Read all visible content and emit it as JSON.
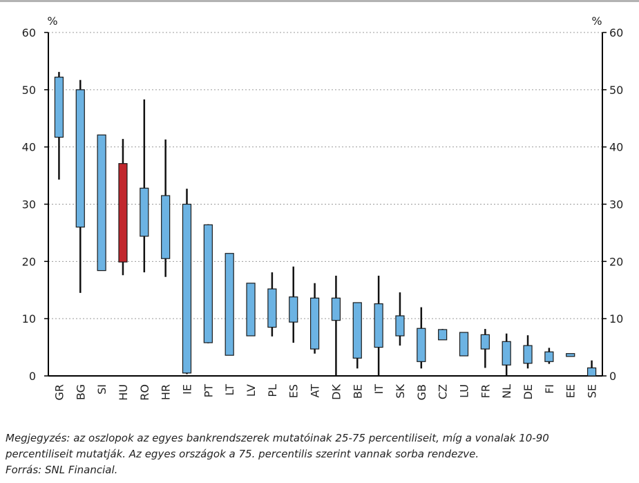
{
  "chart_data": {
    "type": "box",
    "y_label": "%",
    "y2_label": "%",
    "categories": [
      "GR",
      "BG",
      "SI",
      "HU",
      "RO",
      "HR",
      "IE",
      "PT",
      "LT",
      "LV",
      "PL",
      "ES",
      "AT",
      "DK",
      "BE",
      "IT",
      "SK",
      "GB",
      "CZ",
      "LU",
      "FR",
      "NL",
      "DE",
      "FI",
      "EE",
      "SE"
    ],
    "p90": [
      53.1,
      51.7,
      42.1,
      41.4,
      48.3,
      41.3,
      32.7,
      26.5,
      21.4,
      16.2,
      18.1,
      19.1,
      16.2,
      17.5,
      12.8,
      17.5,
      14.6,
      12.0,
      8.2,
      7.6,
      8.2,
      7.4,
      7.1,
      4.9,
      3.9,
      2.7
    ],
    "p75": [
      52.2,
      50.0,
      42.1,
      37.1,
      32.8,
      31.5,
      30.0,
      26.4,
      21.4,
      16.2,
      15.2,
      13.8,
      13.6,
      13.6,
      12.8,
      12.6,
      10.5,
      8.3,
      8.1,
      7.6,
      7.2,
      6.0,
      5.3,
      4.2,
      3.9,
      1.4
    ],
    "p25": [
      41.7,
      26.0,
      18.4,
      19.9,
      24.4,
      20.5,
      0.5,
      5.8,
      3.6,
      7.0,
      8.5,
      9.4,
      4.7,
      9.7,
      3.1,
      5.0,
      7.0,
      2.5,
      6.3,
      3.5,
      4.7,
      1.9,
      2.2,
      2.5,
      3.4,
      0
    ],
    "p10": [
      34.3,
      14.5,
      18.4,
      17.6,
      18.1,
      17.3,
      0.3,
      5.7,
      3.6,
      7.0,
      6.9,
      5.8,
      3.9,
      0,
      1.3,
      0,
      5.3,
      1.3,
      6.3,
      3.5,
      1.4,
      0,
      1.3,
      2.1,
      3.4,
      0
    ],
    "colors": [
      "#6cb3e3",
      "#6cb3e3",
      "#6cb3e3",
      "#c1272d",
      "#6cb3e3",
      "#6cb3e3",
      "#6cb3e3",
      "#6cb3e3",
      "#6cb3e3",
      "#6cb3e3",
      "#6cb3e3",
      "#6cb3e3",
      "#6cb3e3",
      "#6cb3e3",
      "#6cb3e3",
      "#6cb3e3",
      "#6cb3e3",
      "#6cb3e3",
      "#6cb3e3",
      "#6cb3e3",
      "#6cb3e3",
      "#6cb3e3",
      "#6cb3e3",
      "#6cb3e3",
      "#6cb3e3",
      "#6cb3e3"
    ],
    "ylim": [
      0,
      60
    ],
    "yticks": [
      0,
      10,
      20,
      30,
      40,
      50,
      60
    ],
    "y2lim": [
      0,
      60
    ],
    "y2ticks": [
      0,
      10,
      20,
      30,
      40,
      50,
      60
    ],
    "grid": true,
    "notes": [
      "Megjegyzés: az oszlopok az egyes bankrendszerek mutatóinak 25-75 percentiliseit, míg a vonalak 10-90",
      "percentiliseit mutatják. Az egyes országok a 75. percentilis szerint vannak sorba rendezve.",
      "Forrás: SNL Financial."
    ]
  }
}
